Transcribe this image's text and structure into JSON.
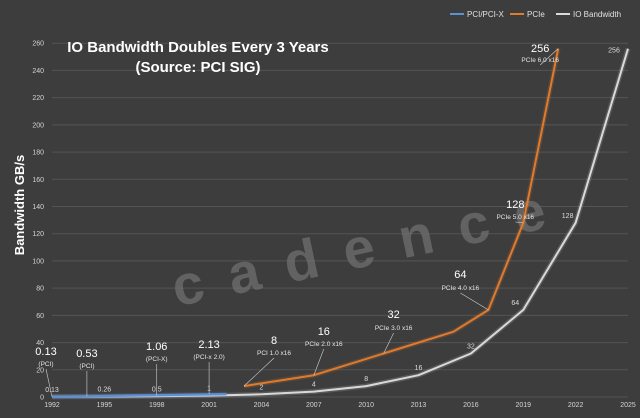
{
  "chart_data": {
    "type": "line",
    "title_line1": "IO Bandwidth Doubles Every 3 Years",
    "title_line2": "(Source: PCI SIG)",
    "ylabel": "Bandwidth GB/s",
    "xlabel": "",
    "watermark": "cadence",
    "x_ticks": [
      "1992",
      "1995",
      "1998",
      "2001",
      "2004",
      "2007",
      "2010",
      "2013",
      "2016",
      "2019",
      "2022",
      "2025"
    ],
    "ylim": [
      0,
      280
    ],
    "y_ticks": [
      0,
      20,
      40,
      60,
      80,
      100,
      120,
      140,
      160,
      180,
      200,
      220,
      240,
      260
    ],
    "xlim": [
      1992,
      2025
    ],
    "grid": "horizontal",
    "legend_position": "top-right",
    "colors": {
      "pci": "#5b8fd6",
      "pcie": "#e07b2e",
      "io": "#d9d9d9",
      "background": "#3d3d3d",
      "grid": "#545454"
    },
    "series": [
      {
        "key": "pci",
        "name": "PCI/PCI-X",
        "x": [
          1992,
          2002
        ],
        "y": [
          0.13,
          2.13
        ]
      },
      {
        "key": "pcie",
        "name": "PCIe",
        "x": [
          2003,
          2007,
          2011,
          2015,
          2017,
          2019,
          2021
        ],
        "y": [
          8,
          16,
          32,
          48,
          64,
          128,
          256
        ]
      },
      {
        "key": "io",
        "name": "IO Bandwidth",
        "x": [
          1992,
          1995,
          1998,
          2001,
          2004,
          2007,
          2010,
          2013,
          2016,
          2019,
          2022,
          2025
        ],
        "y": [
          0.13,
          0.26,
          0.5,
          1,
          2,
          4,
          8,
          16,
          32,
          64,
          128,
          256
        ]
      }
    ],
    "io_value_labels": [
      "0.13",
      "0.26",
      "0.5",
      "1",
      "2",
      "4",
      "8",
      "16",
      "32",
      "64",
      "128",
      "256"
    ],
    "spec_annotations": [
      {
        "value": "0.13",
        "label": "(PCI)",
        "year": 1992,
        "at": 0.13
      },
      {
        "value": "0.53",
        "label": "(PCI)",
        "year": 1994,
        "at": 0.53
      },
      {
        "value": "1.06",
        "label": "(PCI-X)",
        "year": 1998,
        "at": 1.06
      },
      {
        "value": "2.13",
        "label": "(PCI-x 2.0)",
        "year": 2001,
        "at": 2.13
      },
      {
        "value": "8",
        "label": "PCI 1.0 x16",
        "year": 2003,
        "at": 8
      },
      {
        "value": "16",
        "label": "PCIe 2.0 x16",
        "year": 2007,
        "at": 16
      },
      {
        "value": "32",
        "label": "PCIe 3.0 x16",
        "year": 2011,
        "at": 32
      },
      {
        "value": "64",
        "label": "PCIe 4.0 x16",
        "year": 2017,
        "at": 64
      },
      {
        "value": "128",
        "label": "PCIe 5.0 x16",
        "year": 2019,
        "at": 128
      },
      {
        "value": "256",
        "label": "PCIe 6.0 x16",
        "year": 2021,
        "at": 256
      }
    ]
  }
}
